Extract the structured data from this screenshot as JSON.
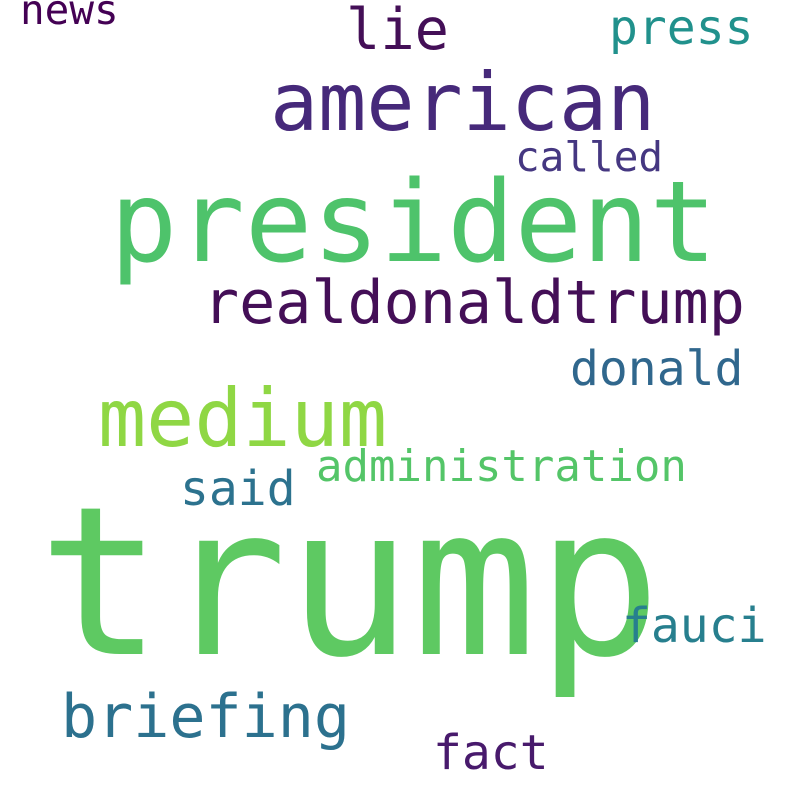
{
  "words": {
    "trump": {
      "text": "trump",
      "color": "#5ec962"
    },
    "president": {
      "text": "president",
      "color": "#4ec36b"
    },
    "american": {
      "text": "american",
      "color": "#46297a"
    },
    "medium": {
      "text": "medium",
      "color": "#8fd744"
    },
    "realdonaldtrump": {
      "text": "realdonaldtrump",
      "color": "#440f57"
    },
    "briefing": {
      "text": "briefing",
      "color": "#2c718e"
    },
    "lie": {
      "text": "lie",
      "color": "#440f57"
    },
    "fact": {
      "text": "fact",
      "color": "#481a6c"
    },
    "press": {
      "text": "press",
      "color": "#21918c"
    },
    "donald": {
      "text": "donald",
      "color": "#30678d"
    },
    "said": {
      "text": "said",
      "color": "#2c728e"
    },
    "fauci": {
      "text": "fauci",
      "color": "#277f8e"
    },
    "administration": {
      "text": "administration",
      "color": "#54c568"
    },
    "called": {
      "text": "called",
      "color": "#453781"
    },
    "news": {
      "text": "news",
      "color": "#440154"
    }
  }
}
